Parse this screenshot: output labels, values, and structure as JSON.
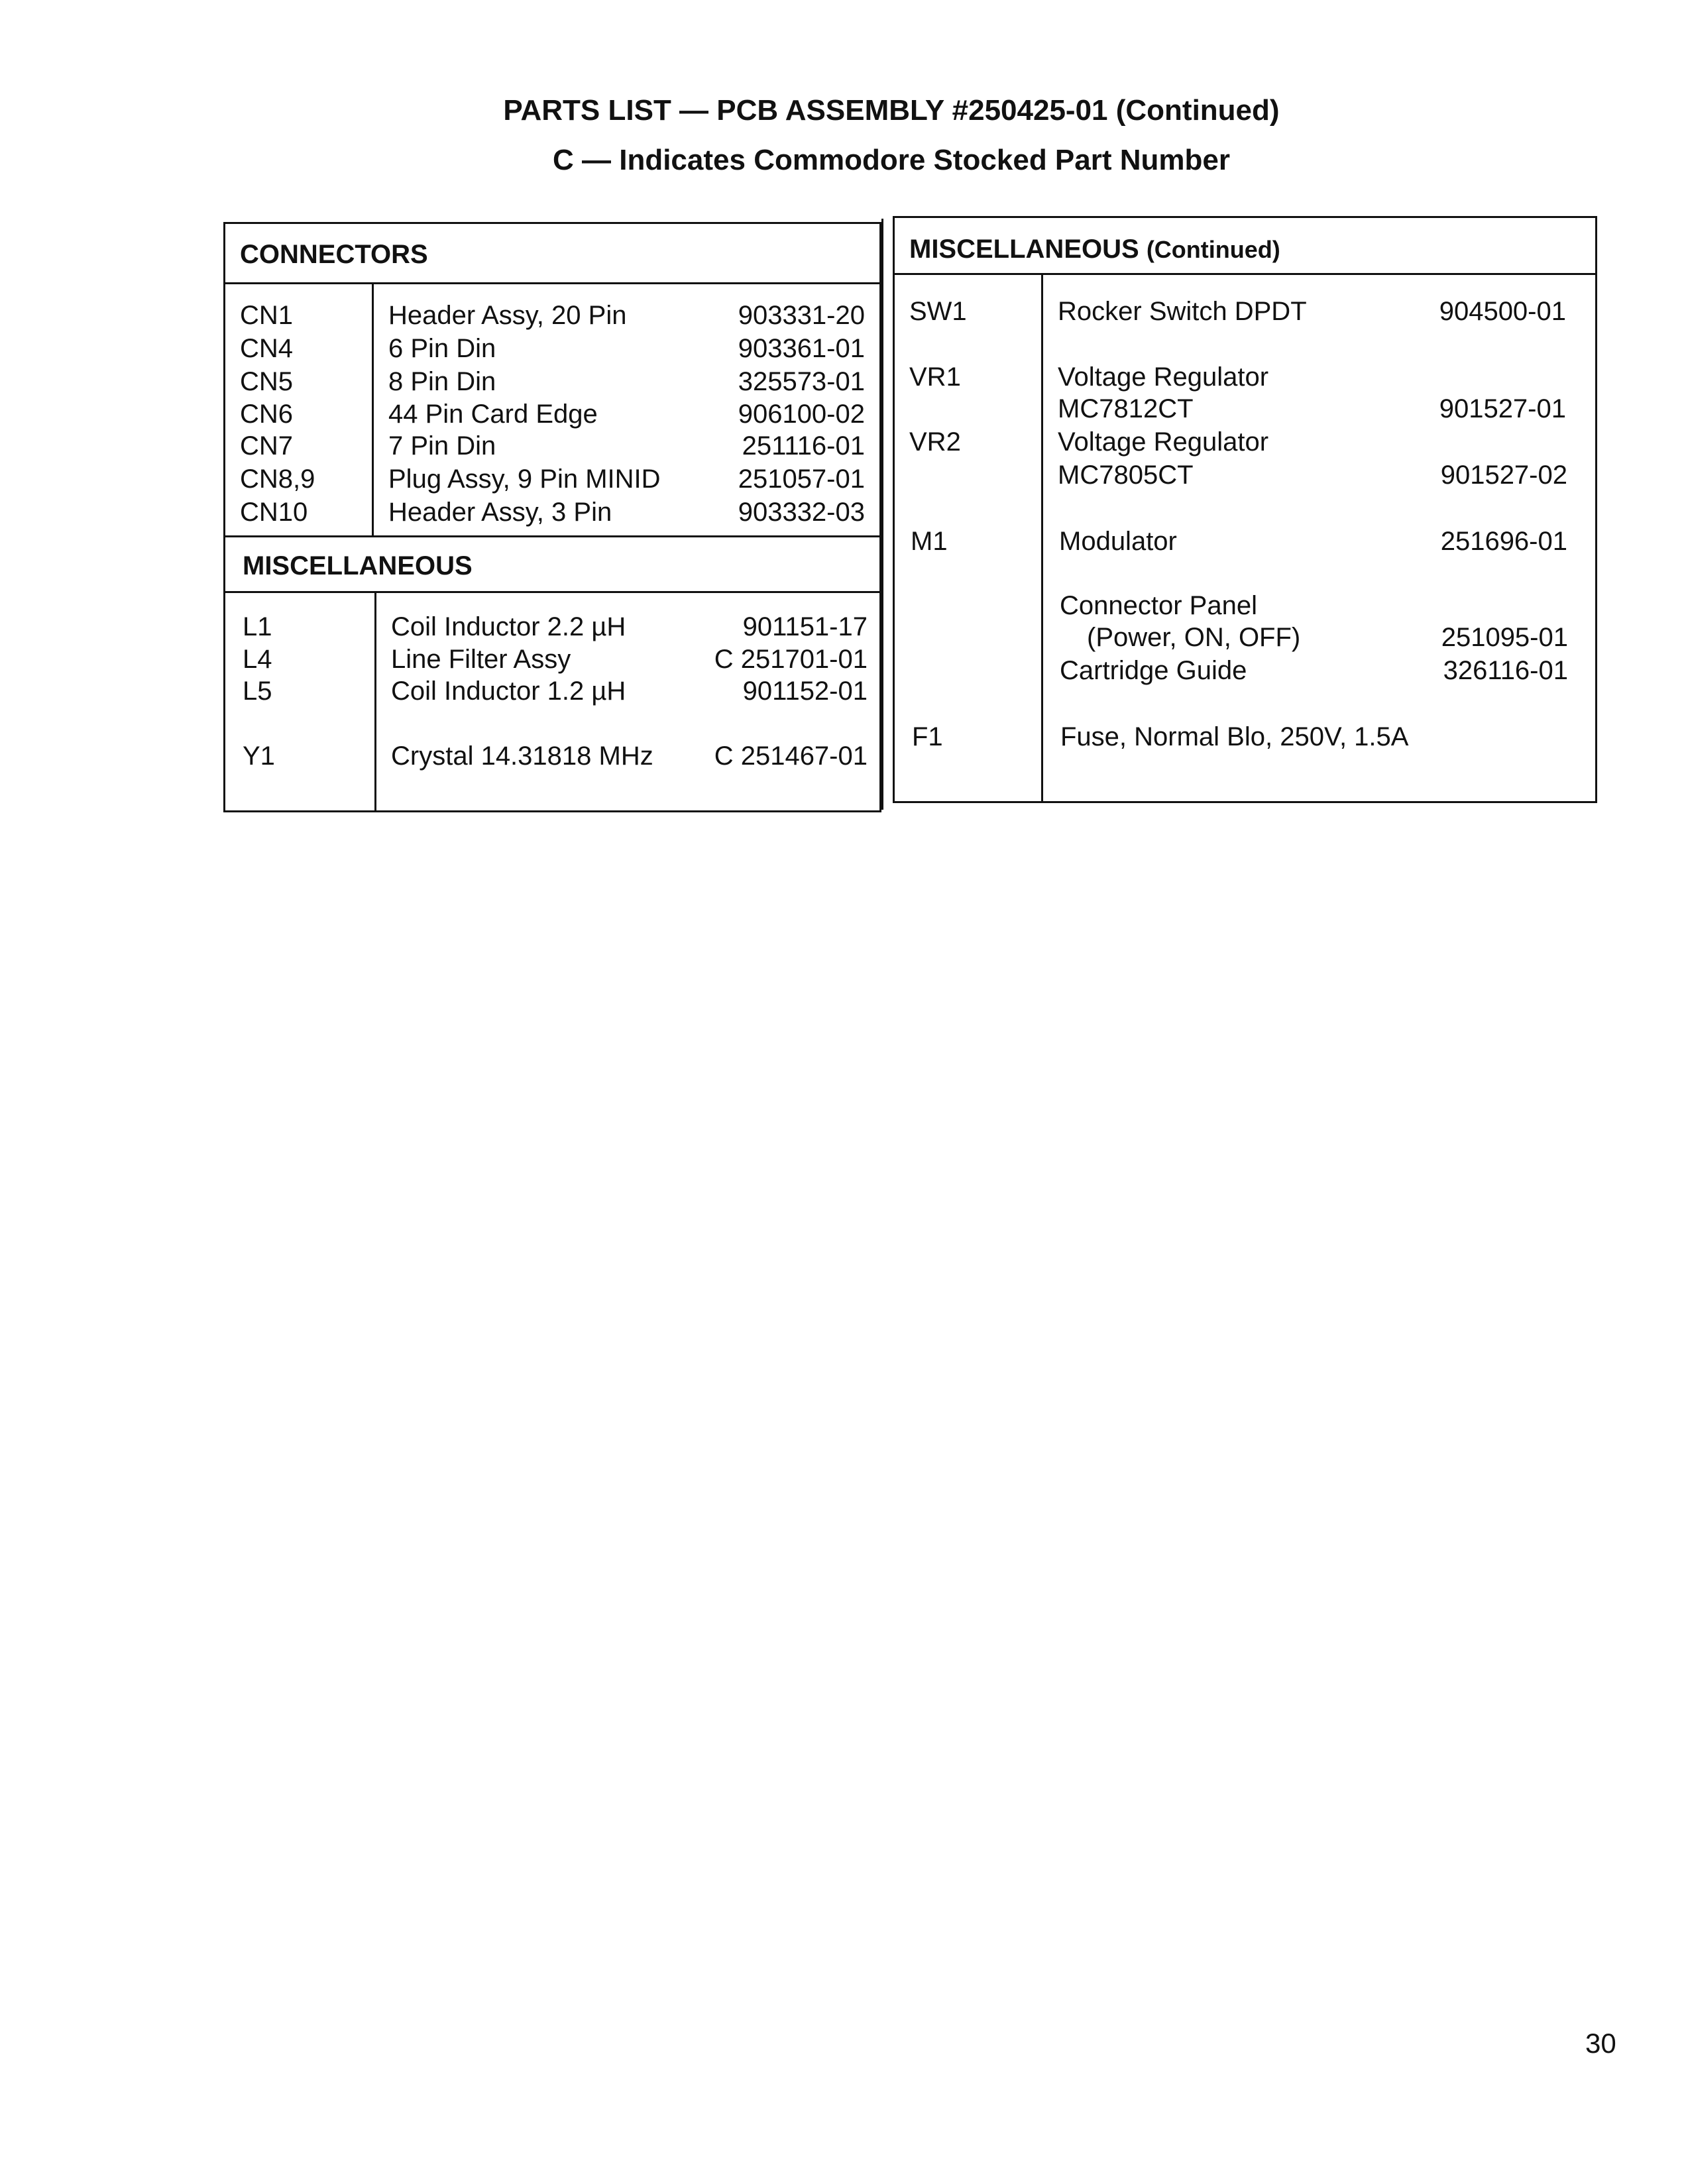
{
  "title": {
    "line1": "PARTS LIST — PCB ASSEMBLY #250425-01 (Continued)",
    "line2": "C — Indicates Commodore Stocked Part Number"
  },
  "connectors": {
    "header": "CONNECTORS",
    "rows": [
      {
        "ref": "CN1",
        "desc": "Header Assy, 20 Pin",
        "part": "903331-20"
      },
      {
        "ref": "CN4",
        "desc": "6 Pin Din",
        "part": "903361-01"
      },
      {
        "ref": "CN5",
        "desc": "8 Pin Din",
        "part": "325573-01"
      },
      {
        "ref": "CN6",
        "desc": "44 Pin Card Edge",
        "part": "906100-02"
      },
      {
        "ref": "CN7",
        "desc": "7 Pin Din",
        "part": "251116-01"
      },
      {
        "ref": "CN8,9",
        "desc": "Plug Assy, 9 Pin MINID",
        "part": "251057-01"
      },
      {
        "ref": "CN10",
        "desc": "Header Assy, 3 Pin",
        "part": "903332-03"
      }
    ]
  },
  "miscellaneous": {
    "header": "MISCELLANEOUS",
    "rows": [
      {
        "ref": "L1",
        "desc": "Coil Inductor 2.2 µH",
        "part": "901151-17"
      },
      {
        "ref": "L4",
        "desc": "Line Filter Assy",
        "part": "C 251701-01"
      },
      {
        "ref": "L5",
        "desc": "Coil Inductor 1.2 µH",
        "part": "901152-01"
      },
      {
        "ref": "Y1",
        "desc": "Crystal 14.31818 MHz",
        "part": "C 251467-01"
      }
    ]
  },
  "misc_continued": {
    "header": "MISCELLANEOUS",
    "header_suffix": "(Continued)",
    "rows": [
      {
        "ref": "SW1",
        "desc": "Rocker Switch DPDT",
        "part": "904500-01"
      },
      {
        "ref": "VR1",
        "desc": "Voltage Regulator",
        "part": ""
      },
      {
        "ref": "",
        "desc": "MC7812CT",
        "part": "901527-01"
      },
      {
        "ref": "VR2",
        "desc": "Voltage Regulator",
        "part": ""
      },
      {
        "ref": "",
        "desc": "MC7805CT",
        "part": "901527-02"
      },
      {
        "ref": "M1",
        "desc": "Modulator",
        "part": "251696-01"
      },
      {
        "ref": "",
        "desc": "Connector Panel",
        "part": ""
      },
      {
        "ref": "",
        "desc": "(Power, ON, OFF)",
        "part": "251095-01"
      },
      {
        "ref": "",
        "desc": "Cartridge Guide",
        "part": "326116-01"
      },
      {
        "ref": "F1",
        "desc": "Fuse, Normal Blo, 250V, 1.5A",
        "part": ""
      }
    ]
  },
  "page_number": "30"
}
